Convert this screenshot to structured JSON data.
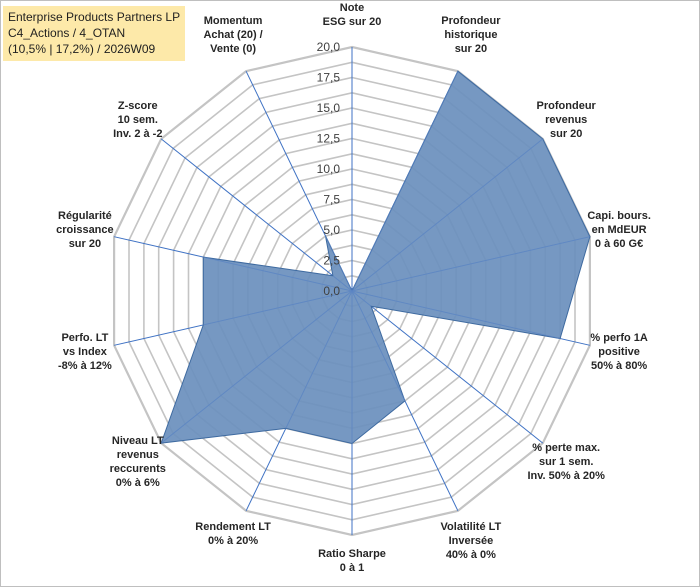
{
  "header": {
    "lines": [
      "Enterprise Products Partners LP",
      "C4_Actions / 4_OTAN",
      "(10,5% | 17,2%) / 2026W09"
    ]
  },
  "chart_data": {
    "type": "radar",
    "title": "",
    "rmax": 20,
    "ticks": [
      "0,0",
      "2,5",
      "5,0",
      "7,5",
      "10,0",
      "12,5",
      "15,0",
      "17,5",
      "20,0"
    ],
    "tick_values": [
      0,
      2.5,
      5,
      7.5,
      10,
      12.5,
      15,
      17.5,
      20
    ],
    "grid_rings": 16,
    "axes": [
      {
        "label": [
          "Note",
          "ESG sur 20"
        ],
        "value": 0
      },
      {
        "label": [
          "Profondeur",
          "historique",
          "sur 20"
        ],
        "value": 20
      },
      {
        "label": [
          "Profondeur",
          "revenus",
          "sur 20"
        ],
        "value": 20
      },
      {
        "label": [
          "Capi. bours.",
          "en MdEUR",
          "0 à 60 G€"
        ],
        "value": 20
      },
      {
        "label": [
          "% perfo 1A",
          "positive",
          "50% à 80%"
        ],
        "value": 17.5
      },
      {
        "label": [
          "% perte max.",
          "sur 1 sem.",
          "Inv. 50% à 20%"
        ],
        "value": 2
      },
      {
        "label": [
          "Volatilité LT",
          "Inversée",
          "40% à 0%"
        ],
        "value": 10
      },
      {
        "label": [
          "Ratio Sharpe",
          "0 à 1"
        ],
        "value": 12.5
      },
      {
        "label": [
          "Rendement LT",
          "0% à 20%"
        ],
        "value": 12.5
      },
      {
        "label": [
          "Niveau LT",
          "revenus",
          "reccurents",
          "0% à 6%"
        ],
        "value": 20
      },
      {
        "label": [
          "Perfo. LT",
          "vs Index",
          "-8% à 12%"
        ],
        "value": 12.5
      },
      {
        "label": [
          "Régularité",
          "croissance",
          "sur 20"
        ],
        "value": 12.5
      },
      {
        "label": [
          "Z-score",
          "10 sem.",
          "Inv. 2 à -2"
        ],
        "value": 2
      },
      {
        "label": [
          "Momentum",
          "Achat (20) /",
          "Vente (0)"
        ],
        "value": 5
      }
    ],
    "colors": {
      "fill": "#6a8fbd",
      "stroke": "#3e6aa0",
      "grid": "#c4c4c4",
      "spoke": "#3f72c4"
    }
  }
}
